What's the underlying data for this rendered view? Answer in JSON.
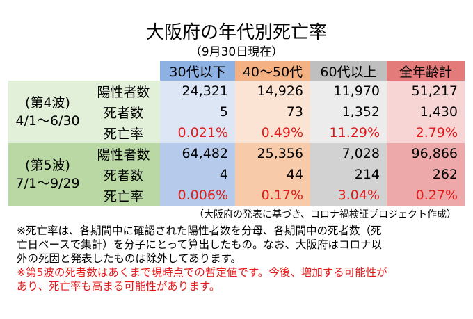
{
  "title": "大阪府の年代別死亡率",
  "subtitle": "（9月30日現在）",
  "table": {
    "columns": [
      "30代以下",
      "40～50代",
      "60代以上",
      "全年齢計"
    ],
    "groups": [
      {
        "label": [
          "(第4波)",
          "4/1～6/30"
        ],
        "rows": [
          {
            "label": "陽性者数",
            "cells": [
              "24,321",
              "14,926",
              "11,970",
              "51,217"
            ]
          },
          {
            "label": "死者数",
            "cells": [
              "5",
              "73",
              "1,352",
              "1,430"
            ]
          },
          {
            "label": "死亡率",
            "cells": [
              "0.021%",
              "0.49%",
              "11.29%",
              "2.79%"
            ]
          }
        ]
      },
      {
        "label": [
          "(第5波)",
          "7/1～9/29"
        ],
        "rows": [
          {
            "label": "陽性者数",
            "cells": [
              "64,482",
              "25,356",
              "7,028",
              "96,866"
            ]
          },
          {
            "label": "死者数",
            "cells": [
              "4",
              "44",
              "214",
              "262"
            ]
          },
          {
            "label": "死亡率",
            "cells": [
              "0.006%",
              "0.17%",
              "3.04%",
              "0.27%"
            ]
          }
        ]
      }
    ]
  },
  "source": "（大阪府の発表に基づき、コロナ禍検証プロジェクト作成）",
  "notes": [
    {
      "lines": [
        "※死亡率は、各期間中に確認された陽性者数を分母、各期間中の死者数（死",
        "亡日ベースで集計）を分子にとって算出したもの。なお、大阪府はコロナ以",
        "外の死因と発表したものは除外してあります。"
      ]
    },
    {
      "lines": [
        "※第5波の死者数はあくまで現時点での暫定値です。今後、増加する可能性が",
        "あり、死亡率も高まる可能性があります。"
      ]
    }
  ]
}
